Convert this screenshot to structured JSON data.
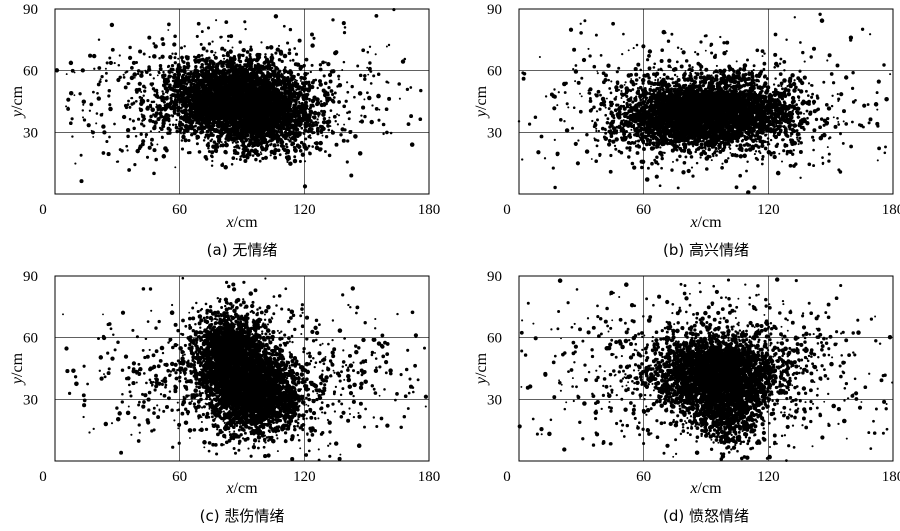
{
  "chart_data": [
    {
      "type": "scatter",
      "caption": "(a) 无情绪",
      "xlabel_var": "x",
      "xlabel_unit": "/cm",
      "ylabel_var": "y",
      "ylabel_unit": "/cm",
      "xlim": [
        0,
        180
      ],
      "ylim": [
        0,
        90
      ],
      "xticks": [
        "0",
        "60",
        "120",
        "180"
      ],
      "yticks": [
        "30",
        "60",
        "90"
      ],
      "grid": true,
      "clusters": [
        {
          "cx": 85,
          "cy": 47,
          "sx": 16,
          "sy": 9,
          "n": 3200
        },
        {
          "cx": 100,
          "cy": 38,
          "sx": 13,
          "sy": 8,
          "n": 1600
        },
        {
          "cx": 85,
          "cy": 45,
          "sx": 38,
          "sy": 16,
          "n": 900
        }
      ]
    },
    {
      "type": "scatter",
      "caption": "(b) 高兴情绪",
      "xlabel_var": "x",
      "xlabel_unit": "/cm",
      "ylabel_var": "y",
      "ylabel_unit": "/cm",
      "xlim": [
        0,
        180
      ],
      "ylim": [
        0,
        90
      ],
      "xticks": [
        "0",
        "60",
        "120",
        "180"
      ],
      "yticks": [
        "30",
        "60",
        "90"
      ],
      "grid": true,
      "clusters": [
        {
          "cx": 95,
          "cy": 40,
          "sx": 18,
          "sy": 8,
          "n": 3400
        },
        {
          "cx": 75,
          "cy": 38,
          "sx": 15,
          "sy": 7,
          "n": 1200
        },
        {
          "cx": 92,
          "cy": 42,
          "sx": 40,
          "sy": 16,
          "n": 900
        }
      ]
    },
    {
      "type": "scatter",
      "caption": "(c) 悲伤情绪",
      "xlabel_var": "x",
      "xlabel_unit": "/cm",
      "ylabel_var": "y",
      "ylabel_unit": "/cm",
      "xlim": [
        0,
        180
      ],
      "ylim": [
        0,
        90
      ],
      "xticks": [
        "0",
        "60",
        "120",
        "180"
      ],
      "yticks": [
        "30",
        "60",
        "90"
      ],
      "grid": true,
      "clusters": [
        {
          "cx": 85,
          "cy": 50,
          "sx": 9,
          "sy": 11,
          "n": 2200
        },
        {
          "cx": 98,
          "cy": 32,
          "sx": 10,
          "sy": 9,
          "n": 2200
        },
        {
          "cx": 95,
          "cy": 40,
          "sx": 38,
          "sy": 17,
          "n": 1000
        }
      ]
    },
    {
      "type": "scatter",
      "caption": "(d) 愤怒情绪",
      "xlabel_var": "x",
      "xlabel_unit": "/cm",
      "ylabel_var": "y",
      "ylabel_unit": "/cm",
      "xlim": [
        0,
        180
      ],
      "ylim": [
        0,
        90
      ],
      "xticks": [
        "0",
        "60",
        "120",
        "180"
      ],
      "yticks": [
        "30",
        "60",
        "90"
      ],
      "grid": true,
      "clusters": [
        {
          "cx": 95,
          "cy": 42,
          "sx": 14,
          "sy": 9,
          "n": 3300
        },
        {
          "cx": 100,
          "cy": 25,
          "sx": 8,
          "sy": 10,
          "n": 700
        },
        {
          "cx": 92,
          "cy": 45,
          "sx": 42,
          "sy": 20,
          "n": 1100
        }
      ]
    }
  ]
}
